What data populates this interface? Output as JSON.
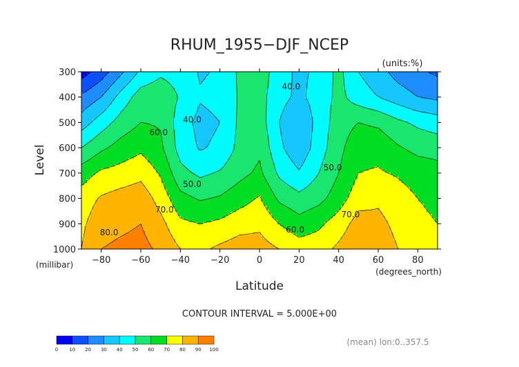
{
  "chart_data": {
    "type": "heatmap",
    "subtype": "filled-contour",
    "title": "RHUM_1955−DJF_NCEP",
    "units_label": "(units:%)",
    "xlabel": "Latitude",
    "x_units_label": "(degrees_north)",
    "ylabel": "Level",
    "y_units_label": "(millibar)",
    "xlim": [
      -90,
      90
    ],
    "ylim": [
      1000,
      300
    ],
    "x_ticks": [
      -80,
      -60,
      -40,
      -20,
      0,
      20,
      40,
      60,
      80
    ],
    "x_tick_labels": [
      "−80",
      "−60",
      "−40",
      "−20",
      "0",
      "20",
      "40",
      "60",
      "80"
    ],
    "y_ticks": [
      300,
      400,
      500,
      600,
      700,
      800,
      900,
      1000
    ],
    "y_tick_labels": [
      "300",
      "400",
      "500",
      "600",
      "700",
      "800",
      "900",
      "1000"
    ],
    "contour_interval_label": "CONTOUR INTERVAL = 5.000E+00",
    "footnote": "(mean) lon:0..357.5",
    "contour_labels": [
      {
        "text": "40.0",
        "lat": -34,
        "level": 500
      },
      {
        "text": "40.0",
        "lat": 16,
        "level": 370
      },
      {
        "text": "60.0",
        "lat": -51,
        "level": 550
      },
      {
        "text": "50.0",
        "lat": -34,
        "level": 755
      },
      {
        "text": "50.0",
        "lat": 37,
        "level": 690
      },
      {
        "text": "70.0",
        "lat": -48,
        "level": 855
      },
      {
        "text": "70.0",
        "lat": 46,
        "level": 875
      },
      {
        "text": "60.0",
        "lat": 18,
        "level": 935
      },
      {
        "text": "80.0",
        "lat": -76,
        "level": 945
      }
    ],
    "levels": [
      300,
      400,
      500,
      600,
      700,
      800,
      900,
      1000
    ],
    "latitudes": [
      -90,
      -80,
      -70,
      -60,
      -50,
      -40,
      -30,
      -20,
      -10,
      0,
      10,
      20,
      30,
      40,
      50,
      60,
      70,
      80,
      90
    ],
    "values": [
      [
        5,
        15,
        28,
        42,
        48,
        46,
        39,
        41,
        52,
        56,
        44,
        38,
        42,
        53,
        40,
        34,
        26,
        22,
        18
      ],
      [
        22,
        30,
        44,
        55,
        57,
        49,
        41,
        43,
        51,
        54,
        43,
        38,
        44,
        53,
        45,
        40,
        35,
        30,
        28
      ],
      [
        35,
        45,
        54,
        60,
        59,
        45,
        37,
        40,
        52,
        55,
        40,
        31,
        44,
        55,
        60,
        58,
        52,
        48,
        45
      ],
      [
        50,
        58,
        64,
        68,
        62,
        46,
        39,
        42,
        53,
        58,
        42,
        33,
        45,
        57,
        67,
        67,
        61,
        57,
        56
      ],
      [
        65,
        72,
        74,
        77,
        69,
        53,
        48,
        51,
        57,
        62,
        48,
        41,
        50,
        60,
        70,
        71,
        69,
        66,
        64
      ],
      [
        75,
        81,
        84,
        86,
        76,
        63,
        59,
        61,
        66,
        71,
        58,
        53,
        57,
        65,
        76,
        78,
        74,
        70,
        68
      ],
      [
        78,
        86,
        88,
        90,
        83,
        72,
        70,
        72,
        76,
        78,
        70,
        64,
        68,
        75,
        84,
        83,
        77,
        72,
        70
      ],
      [
        80,
        90,
        92,
        93,
        88,
        80,
        78,
        82,
        85,
        84,
        80,
        75,
        76,
        82,
        88,
        87,
        80,
        75,
        72
      ]
    ],
    "colorbar": {
      "ticks": [
        "0",
        "10",
        "20",
        "30",
        "40",
        "50",
        "60",
        "70",
        "80",
        "90",
        "100"
      ],
      "colors": [
        "#9b1fc2",
        "#0000f0",
        "#0a50ff",
        "#1e8cff",
        "#14c8ff",
        "#00fcfa",
        "#19e66e",
        "#00dd22",
        "#ffff00",
        "#ffb400",
        "#ff8000",
        "#ff3200",
        "#ff0000"
      ]
    }
  }
}
